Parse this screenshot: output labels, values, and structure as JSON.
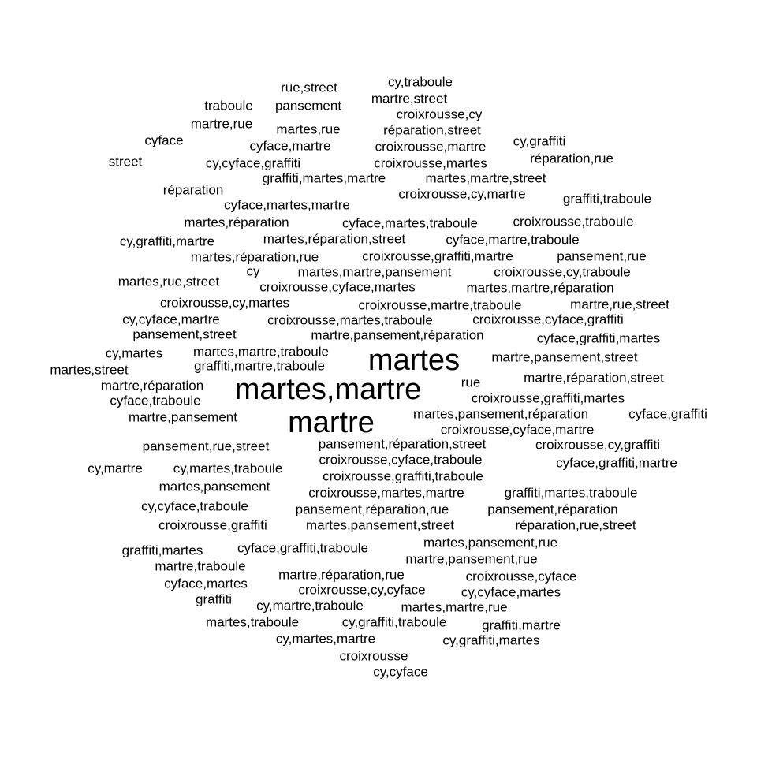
{
  "word_cloud": {
    "text_color": "#000000",
    "background": "#ffffff",
    "words": [
      {
        "text": "cy,traboule"
      },
      {
        "text": "rue,street"
      },
      {
        "text": "martre,street"
      },
      {
        "text": "traboule"
      },
      {
        "text": "pansement"
      },
      {
        "text": "croixrousse,cy"
      },
      {
        "text": "martre,rue"
      },
      {
        "text": "martes,rue"
      },
      {
        "text": "réparation,street"
      },
      {
        "text": "cyface"
      },
      {
        "text": "cyface,martre"
      },
      {
        "text": "croixrousse,martre"
      },
      {
        "text": "cy,graffiti"
      },
      {
        "text": "street"
      },
      {
        "text": "cy,cyface,graffiti"
      },
      {
        "text": "croixrousse,martes"
      },
      {
        "text": "réparation,rue"
      },
      {
        "text": "graffiti,martes,martre"
      },
      {
        "text": "martes,martre,street"
      },
      {
        "text": "réparation"
      },
      {
        "text": "croixrousse,cy,martre"
      },
      {
        "text": "graffiti,traboule"
      },
      {
        "text": "cyface,martes,martre"
      },
      {
        "text": "martes,réparation"
      },
      {
        "text": "cyface,martes,traboule"
      },
      {
        "text": "croixrousse,traboule"
      },
      {
        "text": "cy,graffiti,martre"
      },
      {
        "text": "martes,réparation,street"
      },
      {
        "text": "cyface,martre,traboule"
      },
      {
        "text": "martes,réparation,rue"
      },
      {
        "text": "croixrousse,graffiti,martre"
      },
      {
        "text": "pansement,rue"
      },
      {
        "text": "cy"
      },
      {
        "text": "martes,martre,pansement"
      },
      {
        "text": "croixrousse,cy,traboule"
      },
      {
        "text": "martes,rue,street"
      },
      {
        "text": "croixrousse,cyface,martes"
      },
      {
        "text": "martes,martre,réparation"
      },
      {
        "text": "croixrousse,cy,martes"
      },
      {
        "text": "croixrousse,martre,traboule"
      },
      {
        "text": "martre,rue,street"
      },
      {
        "text": "cy,cyface,martre"
      },
      {
        "text": "croixrousse,martes,traboule"
      },
      {
        "text": "croixrousse,cyface,graffiti"
      },
      {
        "text": "pansement,street"
      },
      {
        "text": "martre,pansement,réparation"
      },
      {
        "text": "cyface,graffiti,martes"
      },
      {
        "text": "cy,martes"
      },
      {
        "text": "martes,martre,traboule"
      },
      {
        "text": "martes"
      },
      {
        "text": "martre,pansement,street"
      },
      {
        "text": "graffiti,martre,traboule"
      },
      {
        "text": "martes,street"
      },
      {
        "text": "martre,réparation,street"
      },
      {
        "text": "rue"
      },
      {
        "text": "martre,réparation"
      },
      {
        "text": "martes,martre"
      },
      {
        "text": "croixrousse,graffiti,martes"
      },
      {
        "text": "cyface,traboule"
      },
      {
        "text": "martes,pansement,réparation"
      },
      {
        "text": "cyface,graffiti"
      },
      {
        "text": "martre,pansement"
      },
      {
        "text": "martre"
      },
      {
        "text": "croixrousse,cyface,martre"
      },
      {
        "text": "pansement,rue,street"
      },
      {
        "text": "pansement,réparation,street"
      },
      {
        "text": "croixrousse,cy,graffiti"
      },
      {
        "text": "croixrousse,cyface,traboule"
      },
      {
        "text": "cyface,graffiti,martre"
      },
      {
        "text": "cy,martre"
      },
      {
        "text": "cy,martes,traboule"
      },
      {
        "text": "croixrousse,graffiti,traboule"
      },
      {
        "text": "martes,pansement"
      },
      {
        "text": "croixrousse,martes,martre"
      },
      {
        "text": "graffiti,martes,traboule"
      },
      {
        "text": "cy,cyface,traboule"
      },
      {
        "text": "pansement,réparation,rue"
      },
      {
        "text": "pansement,réparation"
      },
      {
        "text": "croixrousse,graffiti"
      },
      {
        "text": "martes,pansement,street"
      },
      {
        "text": "réparation,rue,street"
      },
      {
        "text": "martes,pansement,rue"
      },
      {
        "text": "graffiti,martes"
      },
      {
        "text": "cyface,graffiti,traboule"
      },
      {
        "text": "martre,pansement,rue"
      },
      {
        "text": "martre,traboule"
      },
      {
        "text": "martre,réparation,rue"
      },
      {
        "text": "croixrousse,cyface"
      },
      {
        "text": "cyface,martes"
      },
      {
        "text": "croixrousse,cy,cyface"
      },
      {
        "text": "cy,cyface,martes"
      },
      {
        "text": "graffiti"
      },
      {
        "text": "cy,martre,traboule"
      },
      {
        "text": "martes,martre,rue"
      },
      {
        "text": "martes,traboule"
      },
      {
        "text": "cy,graffiti,traboule"
      },
      {
        "text": "graffiti,martre"
      },
      {
        "text": "cy,martes,martre"
      },
      {
        "text": "cy,graffiti,martes"
      },
      {
        "text": "croixrousse"
      },
      {
        "text": "cy,cyface"
      }
    ]
  }
}
